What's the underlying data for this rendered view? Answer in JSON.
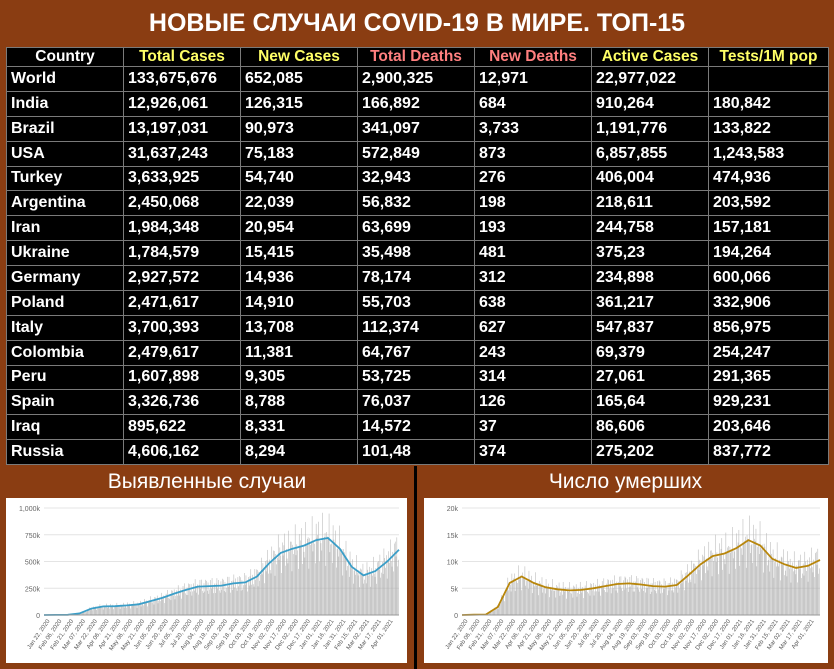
{
  "title": "НОВЫЕ СЛУЧАИ COVID-19 В МИРЕ. ТОП-15",
  "table": {
    "headers": [
      "Country",
      "Total Cases",
      "New Cases",
      "Total Deaths",
      "New Deaths",
      "Active Cases",
      "Tests/1M pop"
    ],
    "rows": [
      [
        "World",
        "133,675,676",
        "652,085",
        "2,900,325",
        "12,971",
        "22,977,022",
        ""
      ],
      [
        "India",
        "12,926,061",
        "126,315",
        "166,892",
        "684",
        "910,264",
        "180,842"
      ],
      [
        "Brazil",
        "13,197,031",
        "90,973",
        "341,097",
        "3,733",
        "1,191,776",
        "133,822"
      ],
      [
        "USA",
        "31,637,243",
        "75,183",
        "572,849",
        "873",
        "6,857,855",
        "1,243,583"
      ],
      [
        "Turkey",
        "3,633,925",
        "54,740",
        "32,943",
        "276",
        "406,004",
        "474,936"
      ],
      [
        "Argentina",
        "2,450,068",
        "22,039",
        "56,832",
        "198",
        "218,611",
        "203,592"
      ],
      [
        "Iran",
        "1,984,348",
        "20,954",
        "63,699",
        "193",
        "244,758",
        "157,181"
      ],
      [
        "Ukraine",
        "1,784,579",
        "15,415",
        "35,498",
        "481",
        "375,23",
        "194,264"
      ],
      [
        "Germany",
        "2,927,572",
        "14,936",
        "78,174",
        "312",
        "234,898",
        "600,066"
      ],
      [
        "Poland",
        "2,471,617",
        "14,910",
        "55,703",
        "638",
        "361,217",
        "332,906"
      ],
      [
        "Italy",
        "3,700,393",
        "13,708",
        "112,374",
        "627",
        "547,837",
        "856,975"
      ],
      [
        "Colombia",
        "2,479,617",
        "11,381",
        "64,767",
        "243",
        "69,379",
        "254,247"
      ],
      [
        "Peru",
        "1,607,898",
        "9,305",
        "53,725",
        "314",
        "27,061",
        "291,365"
      ],
      [
        "Spain",
        "3,326,736",
        "8,788",
        "76,037",
        "126",
        "165,64",
        "929,231"
      ],
      [
        "Iraq",
        "895,622",
        "8,331",
        "14,572",
        "37",
        "86,606",
        "203,646"
      ],
      [
        "Russia",
        "4,606,162",
        "8,294",
        "101,48",
        "374",
        "275,202",
        "837,772"
      ]
    ]
  },
  "colors": {
    "background": "#8a3d12",
    "header_yellow": "#ffff66",
    "header_red": "#ff7f7f",
    "cases_line": "#3a9ec8",
    "deaths_line": "#b8860b",
    "bars": "#b0b0b0"
  },
  "chart_data": [
    {
      "type": "bar",
      "title": "Выявленные случаи",
      "ylim": [
        0,
        1000000
      ],
      "yticks": [
        "0",
        "250k",
        "500k",
        "750k",
        "1,000k"
      ],
      "xticks": [
        "Jan 22, 2020",
        "Feb 06, 2020",
        "Feb 21, 2020",
        "Mar 07, 2020",
        "Mar 22, 2020",
        "Apr 06, 2020",
        "Apr 21, 2020",
        "May 06, 2020",
        "May 21, 2020",
        "Jun 05, 2020",
        "Jun 20, 2020",
        "Jul 05, 2020",
        "Jul 20, 2020",
        "Aug 04, 2020",
        "Aug 19, 2020",
        "Sep 03, 2020",
        "Sep 18, 2020",
        "Oct 03, 2020",
        "Oct 18, 2020",
        "Nov 02, 2020",
        "Nov 17, 2020",
        "Dec 02, 2020",
        "Dec 17, 2020",
        "Jan 01, 2021",
        "Jan 16, 2021",
        "Jan 31, 2021",
        "Feb 15, 2021",
        "Mar 02, 2021",
        "Mar 17, 2021",
        "Apr 01, 2021"
      ],
      "moving_average": [
        0,
        1000,
        2000,
        15000,
        60000,
        80000,
        82000,
        90000,
        100000,
        130000,
        160000,
        200000,
        235000,
        265000,
        270000,
        275000,
        295000,
        305000,
        360000,
        480000,
        580000,
        620000,
        650000,
        700000,
        720000,
        620000,
        450000,
        370000,
        410000,
        500000,
        610000
      ]
    },
    {
      "type": "bar",
      "title": "Число умерших",
      "ylim": [
        0,
        20000
      ],
      "yticks": [
        "0",
        "5k",
        "10k",
        "15k",
        "20k"
      ],
      "xticks": [
        "Jan 22, 2020",
        "Feb 06, 2020",
        "Feb 21, 2020",
        "Mar 07, 2020",
        "Mar 22, 2020",
        "Apr 06, 2020",
        "Apr 21, 2020",
        "May 06, 2020",
        "May 21, 2020",
        "Jun 05, 2020",
        "Jun 20, 2020",
        "Jul 05, 2020",
        "Jul 20, 2020",
        "Aug 04, 2020",
        "Aug 19, 2020",
        "Sep 03, 2020",
        "Sep 18, 2020",
        "Oct 03, 2020",
        "Oct 18, 2020",
        "Nov 02, 2020",
        "Nov 17, 2020",
        "Dec 02, 2020",
        "Dec 17, 2020",
        "Jan 01, 2021",
        "Jan 16, 2021",
        "Jan 31, 2021",
        "Feb 15, 2021",
        "Mar 02, 2021",
        "Mar 17, 2021",
        "Apr 01, 2021"
      ],
      "moving_average": [
        0,
        50,
        100,
        1500,
        6000,
        7200,
        6000,
        5200,
        4800,
        4600,
        4700,
        5000,
        5400,
        5800,
        5900,
        5700,
        5400,
        5300,
        5600,
        7500,
        9500,
        11000,
        11500,
        12500,
        14000,
        13000,
        10500,
        9500,
        8800,
        9200,
        10300
      ]
    }
  ]
}
